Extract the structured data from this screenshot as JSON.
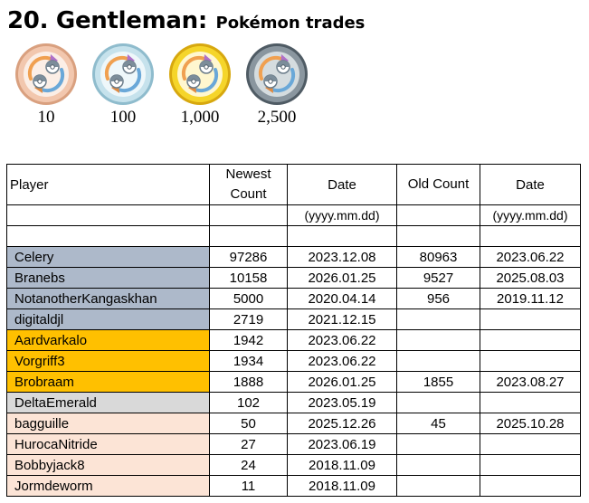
{
  "title": {
    "main": "20. Gentleman:",
    "sub": "Pokémon trades"
  },
  "medals": [
    {
      "name": "bronze",
      "label": "10",
      "ring": "#f2c7ae",
      "ring_dark": "#d9a07f",
      "inner": "#fbeee6"
    },
    {
      "name": "silver",
      "label": "100",
      "ring": "#c6e2ec",
      "ring_dark": "#8fbccd",
      "inner": "#eef7fa"
    },
    {
      "name": "gold",
      "label": "1,000",
      "ring": "#f5d52a",
      "ring_dark": "#d7a80f",
      "inner": "#fff7cf"
    },
    {
      "name": "platinum",
      "label": "2,500",
      "ring": "#8a969f",
      "ring_dark": "#4f5b64",
      "inner": "#d5dcdf"
    }
  ],
  "table": {
    "headers": {
      "player": "Player",
      "newest_count": "Newest Count",
      "date": "Date",
      "old_count": "Old Count",
      "date2": "Date"
    },
    "date_format": "(yyyy.mm.dd)",
    "rows": [
      {
        "player": "Celery",
        "newest": "97286",
        "date": "2023.12.08",
        "old": "80963",
        "old_date": "2023.06.22",
        "tier": "platinum"
      },
      {
        "player": "Branebs",
        "newest": "10158",
        "date": "2026.01.25",
        "old": "9527",
        "old_date": "2025.08.03",
        "tier": "platinum"
      },
      {
        "player": "NotanotherKangaskhan",
        "newest": "5000",
        "date": "2020.04.14",
        "old": "956",
        "old_date": "2019.11.12",
        "tier": "platinum"
      },
      {
        "player": "digitaldjl",
        "newest": "2719",
        "date": "2021.12.15",
        "old": "",
        "old_date": "",
        "tier": "platinum"
      },
      {
        "player": "Aardvarkalo",
        "newest": "1942",
        "date": "2023.06.22",
        "old": "",
        "old_date": "",
        "tier": "gold"
      },
      {
        "player": "Vorgriff3",
        "newest": "1934",
        "date": "2023.06.22",
        "old": "",
        "old_date": "",
        "tier": "gold"
      },
      {
        "player": "Brobraam",
        "newest": "1888",
        "date": "2026.01.25",
        "old": "1855",
        "old_date": "2023.08.27",
        "tier": "gold"
      },
      {
        "player": "DeltaEmerald",
        "newest": "102",
        "date": "2023.05.19",
        "old": "",
        "old_date": "",
        "tier": "silver"
      },
      {
        "player": "bagguille",
        "newest": "50",
        "date": "2025.12.26",
        "old": "45",
        "old_date": "2025.10.28",
        "tier": "bronze"
      },
      {
        "player": "HurocaNitride",
        "newest": "27",
        "date": "2023.06.19",
        "old": "",
        "old_date": "",
        "tier": "bronze"
      },
      {
        "player": "Bobbyjack8",
        "newest": "24",
        "date": "2018.11.09",
        "old": "",
        "old_date": "",
        "tier": "bronze"
      },
      {
        "player": "Jormdeworm",
        "newest": "11",
        "date": "2018.11.09",
        "old": "",
        "old_date": "",
        "tier": "bronze"
      }
    ]
  },
  "tier_colors": {
    "platinum": "#adb9ca",
    "gold": "#ffc000",
    "silver": "#d9d9d9",
    "bronze": "#fce4d6"
  }
}
